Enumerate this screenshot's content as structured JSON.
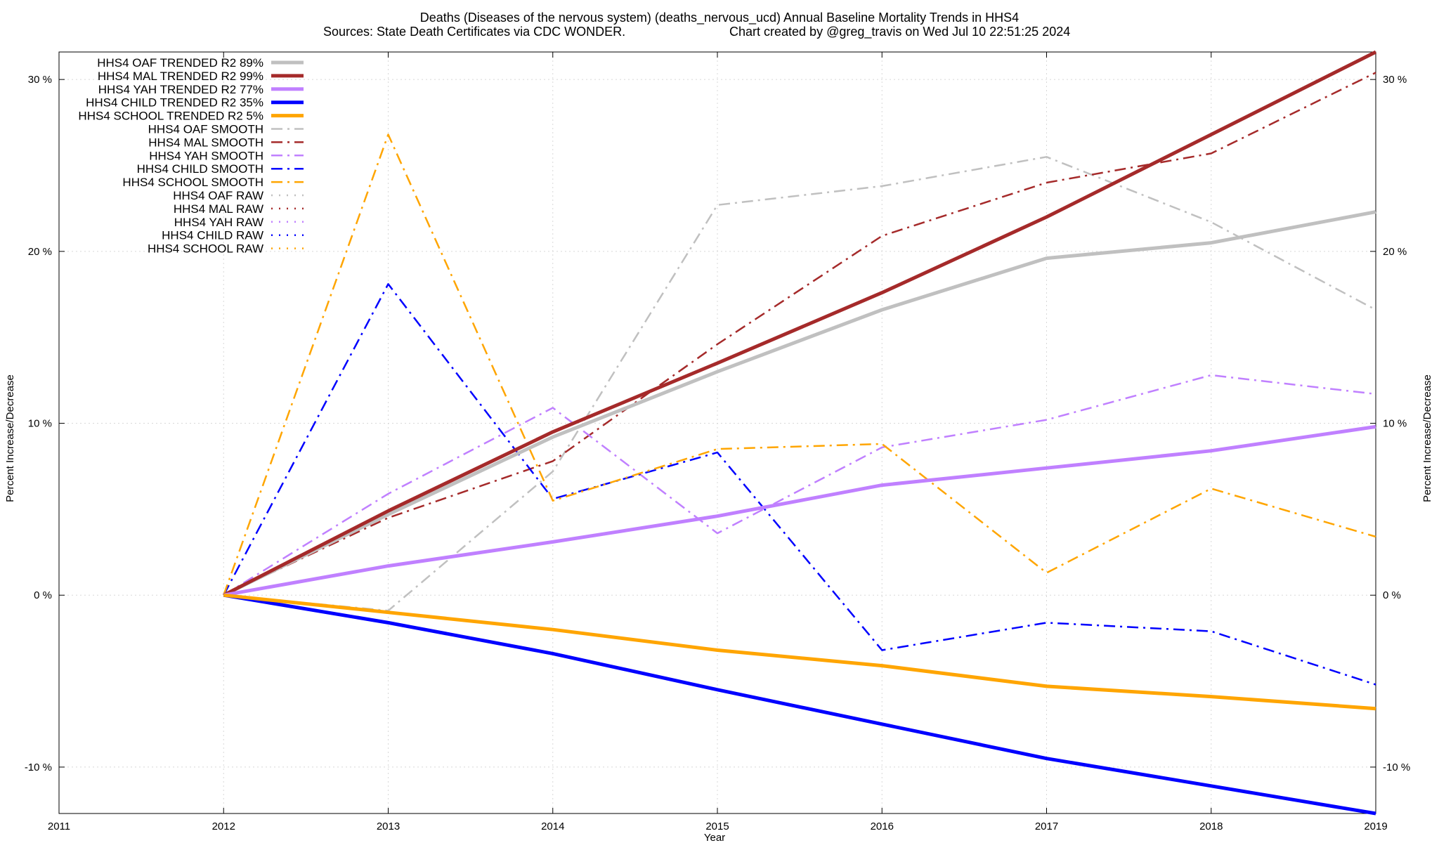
{
  "chart_data": {
    "type": "line",
    "title": "Deaths (Diseases of the nervous system) (deaths_nervous_ucd)  Annual Baseline Mortality Trends in HHS4",
    "subtitle_left": "Sources: State Death Certificates via CDC WONDER.",
    "subtitle_right": "Chart created by @greg_travis on Wed Jul 10 22:51:25 2024",
    "xlabel": "Year",
    "ylabel": "Percent Increase/Decrease",
    "y2label": "Percent Increase/Decrease",
    "xlim": [
      2011,
      2019
    ],
    "ylim": [
      -12.7,
      31.6
    ],
    "x_ticks": [
      "2011",
      "2012",
      "2013",
      "2014",
      "2015",
      "2016",
      "2017",
      "2018",
      "2019"
    ],
    "y_ticks": [
      "-10 %",
      "0 %",
      "10 %",
      "20 %",
      "30 %"
    ],
    "grid": true,
    "legend_position": "top-left",
    "series": [
      {
        "name": "HHS4 OAF TRENDED R2  89%",
        "style": "trended",
        "color": "#c0c0c0",
        "x": [
          2012,
          2013,
          2014,
          2015,
          2016,
          2017,
          2018,
          2019
        ],
        "values": [
          0,
          4.7,
          9.2,
          13.0,
          16.6,
          19.6,
          20.5,
          22.3
        ]
      },
      {
        "name": "HHS4 MAL TRENDED R2  99%",
        "style": "trended",
        "color": "#a52a2a",
        "x": [
          2012,
          2013,
          2014,
          2015,
          2016,
          2017,
          2018,
          2019
        ],
        "values": [
          0,
          4.9,
          9.5,
          13.5,
          17.6,
          22.0,
          26.8,
          31.6
        ]
      },
      {
        "name": "HHS4 YAH TRENDED R2  77%",
        "style": "trended",
        "color": "#c080ff",
        "x": [
          2012,
          2013,
          2014,
          2015,
          2016,
          2017,
          2018,
          2019
        ],
        "values": [
          0,
          1.7,
          3.1,
          4.6,
          6.4,
          7.4,
          8.4,
          9.8
        ]
      },
      {
        "name": "HHS4 CHILD TRENDED R2  35%",
        "style": "trended",
        "color": "#0000ff",
        "x": [
          2012,
          2013,
          2014,
          2015,
          2016,
          2017,
          2018,
          2019
        ],
        "values": [
          0,
          -1.6,
          -3.4,
          -5.5,
          -7.5,
          -9.5,
          -11.1,
          -12.7
        ]
      },
      {
        "name": "HHS4 SCHOOL TRENDED R2   5%",
        "style": "trended",
        "color": "#ffa500",
        "x": [
          2012,
          2013,
          2014,
          2015,
          2016,
          2017,
          2018,
          2019
        ],
        "values": [
          0,
          -1.0,
          -2.0,
          -3.2,
          -4.1,
          -5.3,
          -5.9,
          -6.6
        ]
      },
      {
        "name": "HHS4 OAF SMOOTH",
        "style": "smooth",
        "color": "#c0c0c0",
        "x": [
          2012,
          2013,
          2014,
          2015,
          2016,
          2017,
          2018,
          2019
        ],
        "values": [
          0,
          -0.9,
          7.2,
          22.7,
          23.8,
          25.5,
          21.7,
          16.6
        ]
      },
      {
        "name": "HHS4 MAL SMOOTH",
        "style": "smooth",
        "color": "#a52a2a",
        "x": [
          2012,
          2013,
          2014,
          2015,
          2016,
          2017,
          2018,
          2019
        ],
        "values": [
          0,
          4.5,
          7.8,
          14.6,
          20.9,
          24.0,
          25.7,
          30.4
        ]
      },
      {
        "name": "HHS4 YAH SMOOTH",
        "style": "smooth",
        "color": "#c080ff",
        "x": [
          2012,
          2013,
          2014,
          2015,
          2016,
          2017,
          2018,
          2019
        ],
        "values": [
          0,
          5.9,
          10.9,
          3.6,
          8.6,
          10.2,
          12.8,
          11.7
        ]
      },
      {
        "name": "HHS4 CHILD SMOOTH",
        "style": "smooth",
        "color": "#0000ff",
        "x": [
          2012,
          2013,
          2014,
          2015,
          2016,
          2017,
          2018,
          2019
        ],
        "values": [
          0,
          18.1,
          5.6,
          8.3,
          -3.2,
          -1.6,
          -2.1,
          -5.2
        ]
      },
      {
        "name": "HHS4 SCHOOL SMOOTH",
        "style": "smooth",
        "color": "#ffa500",
        "x": [
          2012,
          2013,
          2014,
          2015,
          2016,
          2017,
          2018,
          2019
        ],
        "values": [
          0,
          26.8,
          5.5,
          8.5,
          8.8,
          1.3,
          6.2,
          3.4
        ]
      },
      {
        "name": "HHS4 OAF RAW",
        "style": "raw",
        "color": "#c0c0c0",
        "x": [],
        "values": []
      },
      {
        "name": "HHS4 MAL RAW",
        "style": "raw",
        "color": "#a52a2a",
        "x": [],
        "values": []
      },
      {
        "name": "HHS4 YAH RAW",
        "style": "raw",
        "color": "#c080ff",
        "x": [],
        "values": []
      },
      {
        "name": "HHS4 CHILD RAW",
        "style": "raw",
        "color": "#0000ff",
        "x": [],
        "values": []
      },
      {
        "name": "HHS4 SCHOOL RAW",
        "style": "raw",
        "color": "#ffa500",
        "x": [],
        "values": []
      }
    ]
  }
}
